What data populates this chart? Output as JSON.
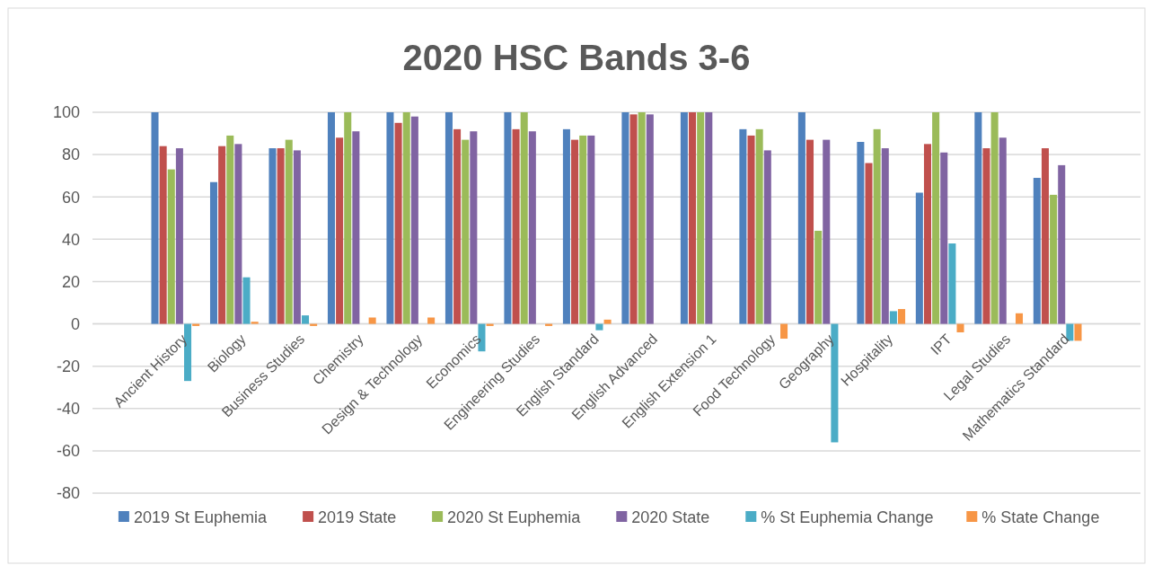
{
  "chart_data": {
    "type": "bar",
    "title": "2020 HSC Bands 3-6",
    "categories": [
      "Ancient History",
      "Biology",
      "Business Studies",
      "Chemistry",
      "Design & Technology",
      "Economics",
      "Engineering Studies",
      "English Standard",
      "English Advanced",
      "English Extension 1",
      "Food Technology",
      "Geography",
      "Hospitality",
      "IPT",
      "Legal Studies",
      "Mathematics Standard"
    ],
    "series": [
      {
        "name": "2019 St Euphemia",
        "color": "#4f81bd",
        "values": [
          100,
          67,
          83,
          100,
          100,
          100,
          100,
          92,
          100,
          100,
          92,
          100,
          86,
          62,
          100,
          69
        ]
      },
      {
        "name": "2019 State",
        "color": "#c0504d",
        "values": [
          84,
          84,
          83,
          88,
          95,
          92,
          92,
          87,
          99,
          100,
          89,
          87,
          76,
          85,
          83,
          83
        ]
      },
      {
        "name": "2020 St Euphemia",
        "color": "#9bbb59",
        "values": [
          73,
          89,
          87,
          100,
          100,
          87,
          100,
          89,
          100,
          100,
          92,
          44,
          92,
          100,
          100,
          61
        ]
      },
      {
        "name": "2020 State",
        "color": "#8064a2",
        "values": [
          83,
          85,
          82,
          91,
          98,
          91,
          91,
          89,
          99,
          100,
          82,
          87,
          83,
          81,
          88,
          75
        ]
      },
      {
        "name": "% St Euphemia Change",
        "color": "#4bacc6",
        "values": [
          -27,
          22,
          4,
          null,
          null,
          -13,
          null,
          -3,
          null,
          null,
          null,
          -56,
          6,
          38,
          null,
          -8
        ]
      },
      {
        "name": "% State Change",
        "color": "#f79646",
        "values": [
          -1,
          1,
          -1,
          3,
          3,
          -1,
          -1,
          2,
          null,
          null,
          -7,
          null,
          7,
          -4,
          5,
          -8
        ]
      }
    ],
    "ylim": [
      -80,
      100
    ],
    "yticks": [
      -80,
      -60,
      -40,
      -20,
      0,
      20,
      40,
      60,
      80,
      100
    ],
    "grid": "y",
    "legend": "bottom"
  }
}
